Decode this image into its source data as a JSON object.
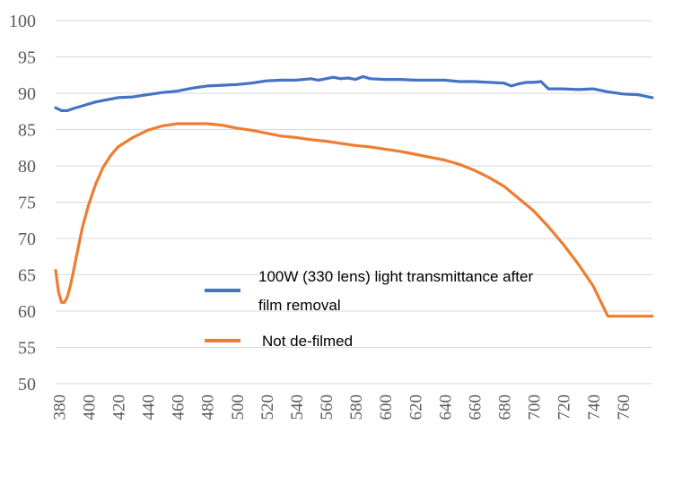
{
  "chart_data": {
    "type": "line",
    "title": "",
    "xlabel": "",
    "ylabel": "",
    "xlim": [
      378,
      780
    ],
    "ylim": [
      50,
      100
    ],
    "y_ticks": [
      50,
      55,
      60,
      65,
      70,
      75,
      80,
      85,
      90,
      95,
      100
    ],
    "x_ticks": [
      380,
      400,
      420,
      440,
      460,
      480,
      500,
      520,
      540,
      560,
      580,
      600,
      620,
      640,
      660,
      680,
      700,
      720,
      740,
      760
    ],
    "y_tick_labels": [
      "50",
      "55",
      "60",
      "65",
      "70",
      "75",
      "80",
      "85",
      "90",
      "95",
      "100"
    ],
    "x_tick_labels": [
      "380",
      "400",
      "420",
      "440",
      "460",
      "480",
      "500",
      "520",
      "540",
      "560",
      "580",
      "600",
      "620",
      "640",
      "660",
      "680",
      "700",
      "720",
      "740",
      "760"
    ],
    "grid": true,
    "legend_position": "center",
    "series": [
      {
        "name": "100W (330 lens) light transmittance after film removal",
        "legend_line1": "100W (330 lens) light transmittance after",
        "legend_line2": "film removal",
        "color": "#4472C4",
        "x": [
          378,
          382,
          386,
          390,
          395,
          400,
          405,
          410,
          420,
          430,
          440,
          450,
          460,
          470,
          480,
          490,
          500,
          510,
          520,
          530,
          540,
          550,
          555,
          560,
          565,
          570,
          575,
          580,
          585,
          590,
          600,
          610,
          620,
          630,
          640,
          650,
          660,
          670,
          680,
          685,
          690,
          695,
          700,
          705,
          710,
          720,
          730,
          740,
          750,
          760,
          770,
          780
        ],
        "y": [
          88.0,
          87.6,
          87.6,
          87.9,
          88.2,
          88.5,
          88.8,
          89.0,
          89.4,
          89.5,
          89.8,
          90.1,
          90.3,
          90.7,
          91.0,
          91.1,
          91.2,
          91.4,
          91.7,
          91.8,
          91.8,
          92.0,
          91.8,
          92.0,
          92.2,
          92.0,
          92.1,
          91.9,
          92.3,
          92.0,
          91.9,
          91.9,
          91.8,
          91.8,
          91.8,
          91.6,
          91.6,
          91.5,
          91.4,
          91.0,
          91.3,
          91.5,
          91.5,
          91.6,
          90.6,
          90.6,
          90.5,
          90.6,
          90.2,
          89.9,
          89.8,
          89.4
        ]
      },
      {
        "name": "Not de-filmed",
        "color": "#ED7D31",
        "x": [
          378,
          380,
          382,
          384,
          386,
          388,
          390,
          393,
          396,
          400,
          405,
          410,
          415,
          420,
          430,
          440,
          450,
          460,
          470,
          480,
          490,
          500,
          510,
          520,
          530,
          540,
          550,
          560,
          570,
          580,
          590,
          600,
          610,
          620,
          630,
          640,
          650,
          660,
          670,
          680,
          690,
          700,
          710,
          720,
          730,
          740,
          750,
          760,
          770,
          780
        ],
        "y": [
          65.6,
          62.6,
          61.2,
          61.2,
          62.0,
          63.5,
          65.5,
          68.5,
          71.5,
          74.5,
          77.5,
          79.8,
          81.4,
          82.6,
          83.9,
          84.9,
          85.5,
          85.8,
          85.8,
          85.8,
          85.6,
          85.2,
          84.9,
          84.5,
          84.1,
          83.9,
          83.6,
          83.4,
          83.1,
          82.8,
          82.6,
          82.3,
          82.0,
          81.6,
          81.2,
          80.8,
          80.2,
          79.4,
          78.4,
          77.2,
          75.5,
          73.8,
          71.6,
          69.2,
          66.5,
          63.5,
          59.3,
          59.3,
          59.3,
          59.3
        ]
      }
    ]
  }
}
